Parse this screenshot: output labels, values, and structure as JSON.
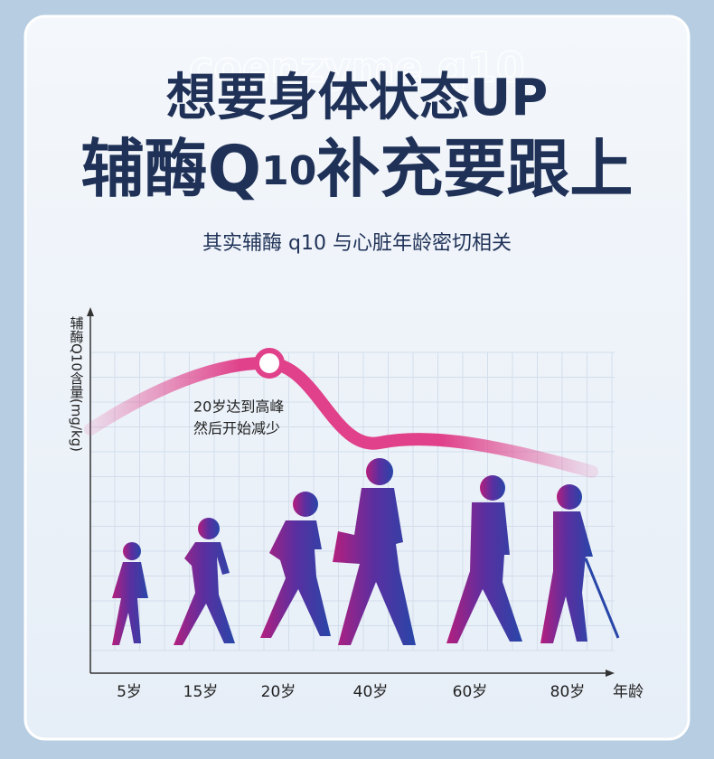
{
  "watermark": "coenzyme q10",
  "title_line1": "想要身体状态UP",
  "title_line2": [
    "辅酶",
    "Q",
    "10",
    "补充要跟上"
  ],
  "subtitle": "其实辅酶 q10 与心脏年龄密切相关",
  "chart": {
    "y_label": "辅酶Q10含量(mg/kg)",
    "x_label": "年龄",
    "categories": [
      "5岁",
      "15岁",
      "20岁",
      "40岁",
      "60岁",
      "80岁"
    ],
    "annotation": [
      "20岁达到高峰",
      "然后开始减少"
    ]
  }
}
